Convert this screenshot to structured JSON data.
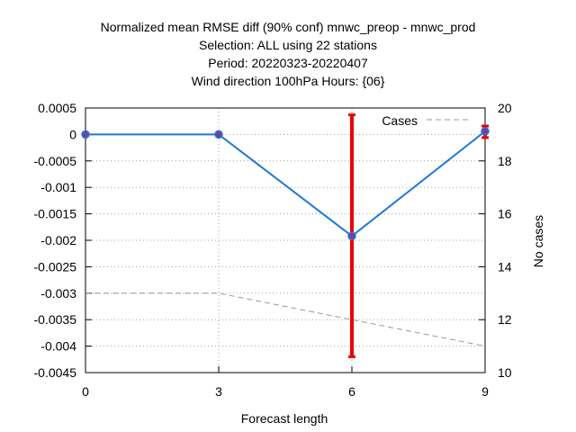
{
  "chart_data": {
    "type": "line",
    "title_lines": [
      "Normalized mean RMSE diff (90% conf) mnwc_preop - mnwc_prod",
      "Selection: ALL using    22 stations",
      "Period: 20220323-20220407",
      "Wind direction 100hPa   Hours: {06}"
    ],
    "xlabel": "Forecast length",
    "ylabel": "",
    "y2label": "No cases",
    "x": [
      0,
      3,
      6,
      9
    ],
    "xticks": [
      "0",
      "3",
      "6",
      "9"
    ],
    "xlim": [
      0,
      9
    ],
    "ylim": [
      -0.0045,
      0.0005
    ],
    "yticks": [
      "0.0005",
      "0",
      "-0.0005",
      "-0.001",
      "-0.0015",
      "-0.002",
      "-0.0025",
      "-0.003",
      "-0.0035",
      "-0.004",
      "-0.0045"
    ],
    "y2lim": [
      10,
      20
    ],
    "y2ticks": [
      "20",
      "18",
      "16",
      "14",
      "12",
      "10"
    ],
    "grid": true,
    "legend_placement": "top-right",
    "series": [
      {
        "axis": "left",
        "values": [
          0,
          0,
          -0.00192,
          6e-05
        ],
        "error_low": [
          0,
          0,
          -0.0042,
          -6e-05
        ],
        "error_high": [
          0,
          0,
          0.00037,
          0.00016
        ],
        "color": "#1f77d4",
        "marker_color": "#7a3f9c",
        "errorbar_color": "#ee0000"
      },
      {
        "name": "Cases",
        "axis": "right",
        "values": [
          13,
          13,
          12,
          11
        ],
        "color": "#999999",
        "dashed": true
      }
    ]
  }
}
